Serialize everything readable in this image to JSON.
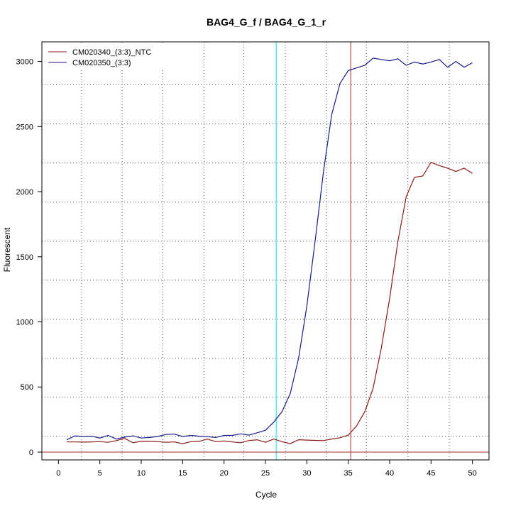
{
  "chart_data": {
    "type": "line",
    "title": "BAG4_G_f / BAG4_G_1_r",
    "xlabel": "Cycle",
    "ylabel": "Fluorescent",
    "xlim": [
      -2,
      52
    ],
    "ylim": [
      -60,
      3150
    ],
    "x_ticks": [
      0,
      5,
      10,
      15,
      20,
      25,
      30,
      35,
      40,
      45,
      50
    ],
    "y_ticks": [
      0,
      500,
      1000,
      1500,
      2000,
      2500,
      3000
    ],
    "legend_position": "top-left",
    "grid": "dotted",
    "grid_x": [
      2.8,
      7.7,
      12.6,
      17.6,
      22.4,
      27.4,
      32.4,
      37.2,
      42.2,
      47.2
    ],
    "grid_y": [
      120,
      420,
      720,
      1020,
      1320,
      1620,
      1920,
      2220,
      2520,
      2820
    ],
    "threshold_y": 0,
    "threshold_color": "#a52a2a",
    "vlines": [
      {
        "x": 26.3,
        "color": "#00e5ee"
      },
      {
        "x": 35.3,
        "color": "#a52a2a"
      }
    ],
    "series": [
      {
        "name": "CM020340_(3:3)_NTC",
        "color": "#8b1a1a",
        "x": [
          1,
          2,
          3,
          4,
          5,
          6,
          7,
          8,
          9,
          10,
          11,
          12,
          13,
          14,
          15,
          16,
          17,
          18,
          19,
          20,
          21,
          22,
          23,
          24,
          25,
          26,
          27,
          28,
          29,
          30,
          31,
          32,
          33,
          34,
          35,
          36,
          37,
          38,
          39,
          40,
          41,
          42,
          43,
          44,
          45,
          46,
          47,
          48,
          49,
          50
        ],
        "values": [
          78,
          78,
          77,
          78,
          80,
          75,
          88,
          105,
          72,
          82,
          82,
          80,
          75,
          78,
          65,
          80,
          82,
          100,
          80,
          85,
          78,
          72,
          88,
          95,
          75,
          100,
          80,
          65,
          95,
          92,
          90,
          88,
          100,
          110,
          130,
          200,
          310,
          490,
          800,
          1180,
          1620,
          1960,
          2110,
          2120,
          2225,
          2200,
          2180,
          2155,
          2180,
          2140
        ]
      },
      {
        "name": "CM020350_(3:3)",
        "color": "#1a1a8b",
        "x": [
          1,
          2,
          3,
          4,
          5,
          6,
          7,
          8,
          9,
          10,
          11,
          12,
          13,
          14,
          15,
          16,
          17,
          18,
          19,
          20,
          21,
          22,
          23,
          24,
          25,
          26,
          27,
          28,
          29,
          30,
          31,
          32,
          33,
          34,
          35,
          36,
          37,
          38,
          39,
          40,
          41,
          42,
          43,
          44,
          45,
          46,
          47,
          48,
          49,
          50
        ],
        "values": [
          95,
          125,
          120,
          122,
          108,
          128,
          100,
          115,
          125,
          108,
          112,
          120,
          135,
          138,
          120,
          128,
          122,
          118,
          112,
          128,
          128,
          140,
          130,
          148,
          168,
          230,
          310,
          450,
          720,
          1120,
          1620,
          2150,
          2590,
          2830,
          2930,
          2950,
          2970,
          3025,
          3015,
          3005,
          3020,
          2970,
          2995,
          2980,
          2995,
          3015,
          2955,
          3000,
          2955,
          2990
        ]
      }
    ]
  }
}
